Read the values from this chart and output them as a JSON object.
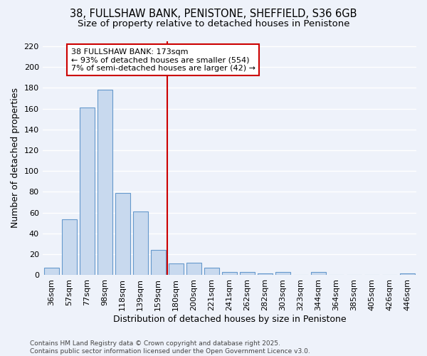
{
  "title": "38, FULLSHAW BANK, PENISTONE, SHEFFIELD, S36 6GB",
  "subtitle": "Size of property relative to detached houses in Penistone",
  "xlabel": "Distribution of detached houses by size in Penistone",
  "ylabel": "Number of detached properties",
  "bar_color": "#c8d9ee",
  "bar_edge_color": "#6699cc",
  "background_color": "#eef2fa",
  "grid_color": "#ffffff",
  "categories": [
    "36sqm",
    "57sqm",
    "77sqm",
    "98sqm",
    "118sqm",
    "139sqm",
    "159sqm",
    "180sqm",
    "200sqm",
    "221sqm",
    "241sqm",
    "262sqm",
    "282sqm",
    "303sqm",
    "323sqm",
    "344sqm",
    "364sqm",
    "385sqm",
    "405sqm",
    "426sqm",
    "446sqm"
  ],
  "values": [
    7,
    54,
    161,
    178,
    79,
    61,
    24,
    11,
    12,
    7,
    3,
    3,
    2,
    3,
    0,
    3,
    0,
    0,
    0,
    0,
    2
  ],
  "vline_x_index": 7,
  "vline_color": "#cc0000",
  "annotation_text": "38 FULLSHAW BANK: 173sqm\n← 93% of detached houses are smaller (554)\n7% of semi-detached houses are larger (42) →",
  "annotation_box_color": "#ffffff",
  "annotation_box_edge": "#cc0000",
  "ylim": [
    0,
    225
  ],
  "yticks": [
    0,
    20,
    40,
    60,
    80,
    100,
    120,
    140,
    160,
    180,
    200,
    220
  ],
  "footnote": "Contains HM Land Registry data © Crown copyright and database right 2025.\nContains public sector information licensed under the Open Government Licence v3.0.",
  "title_fontsize": 10.5,
  "subtitle_fontsize": 9.5,
  "axis_label_fontsize": 9,
  "tick_fontsize": 8,
  "annotation_fontsize": 8,
  "footnote_fontsize": 6.5
}
